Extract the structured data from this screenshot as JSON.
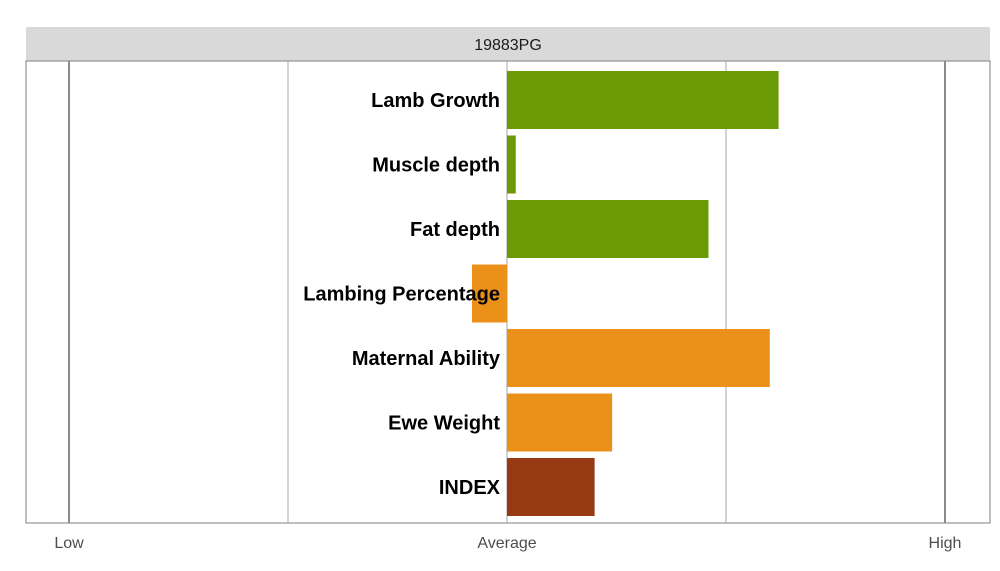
{
  "chart_data": {
    "type": "bar",
    "orientation": "horizontal",
    "title": "19883PG",
    "categories": [
      "Lamb Growth",
      "Muscle depth",
      "Fat depth",
      "Lambing Percentage",
      "Maternal Ability",
      "Ewe Weight",
      "INDEX"
    ],
    "values": [
      0.62,
      0.02,
      0.46,
      -0.08,
      0.6,
      0.24,
      0.2
    ],
    "bar_colors": [
      "#6a9a06",
      "#6a9a06",
      "#6a9a06",
      "#eb9018",
      "#eb9018",
      "#eb9018",
      "#953a12"
    ],
    "xlim": [
      -1,
      1
    ],
    "x_ticks": [
      {
        "value": -1,
        "label": "Low"
      },
      {
        "value": 0,
        "label": "Average"
      },
      {
        "value": 1,
        "label": "High"
      }
    ],
    "x_gridlines": [
      -1,
      -0.5,
      0,
      0.5,
      1
    ],
    "grid": true,
    "legend": "none"
  },
  "colors": {
    "strip_background": "#d9d9d9",
    "panel_border": "#7f7f7f",
    "gridline": "#a6a6a6",
    "gridline_major": "#8c8c8c"
  }
}
